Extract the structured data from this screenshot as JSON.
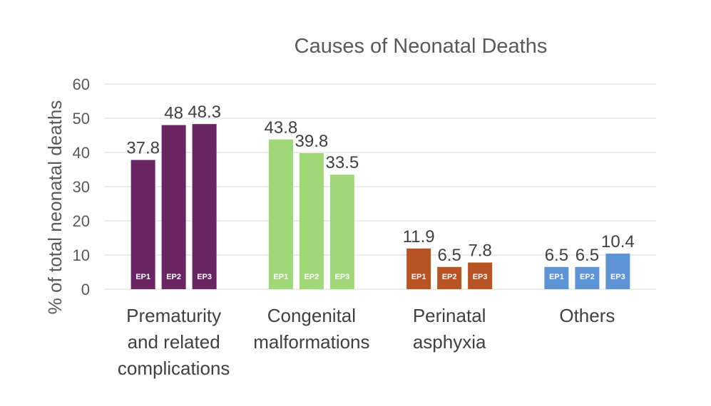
{
  "chart_data": {
    "type": "bar",
    "title": "Causes of Neonatal Deaths",
    "xlabel": "",
    "ylabel": "% of total neonatal deaths",
    "ylim": [
      0,
      60
    ],
    "yticks": [
      0,
      10,
      20,
      30,
      40,
      50,
      60
    ],
    "grid": true,
    "legend": "none",
    "bar_labels": [
      "EP1",
      "EP2",
      "EP3"
    ],
    "categories": [
      {
        "lines": [
          "Prematurity",
          "and related",
          "complications"
        ],
        "color": "#6a2563",
        "values": [
          37.8,
          48,
          48.3
        ],
        "value_labels": [
          "37.8",
          "48",
          "48.3"
        ]
      },
      {
        "lines": [
          "Congenital",
          "malformations"
        ],
        "color": "#a0d878",
        "values": [
          43.8,
          39.8,
          33.5
        ],
        "value_labels": [
          "43.8",
          "39.8",
          "33.5"
        ]
      },
      {
        "lines": [
          "Perinatal",
          "asphyxia"
        ],
        "color": "#b85424",
        "values": [
          11.9,
          6.5,
          7.8
        ],
        "value_labels": [
          "11.9",
          "6.5",
          "7.8"
        ]
      },
      {
        "lines": [
          "Others"
        ],
        "color": "#5b93d4",
        "values": [
          6.5,
          6.5,
          10.4
        ],
        "value_labels": [
          "6.5",
          "6.5",
          "10.4"
        ]
      }
    ]
  }
}
